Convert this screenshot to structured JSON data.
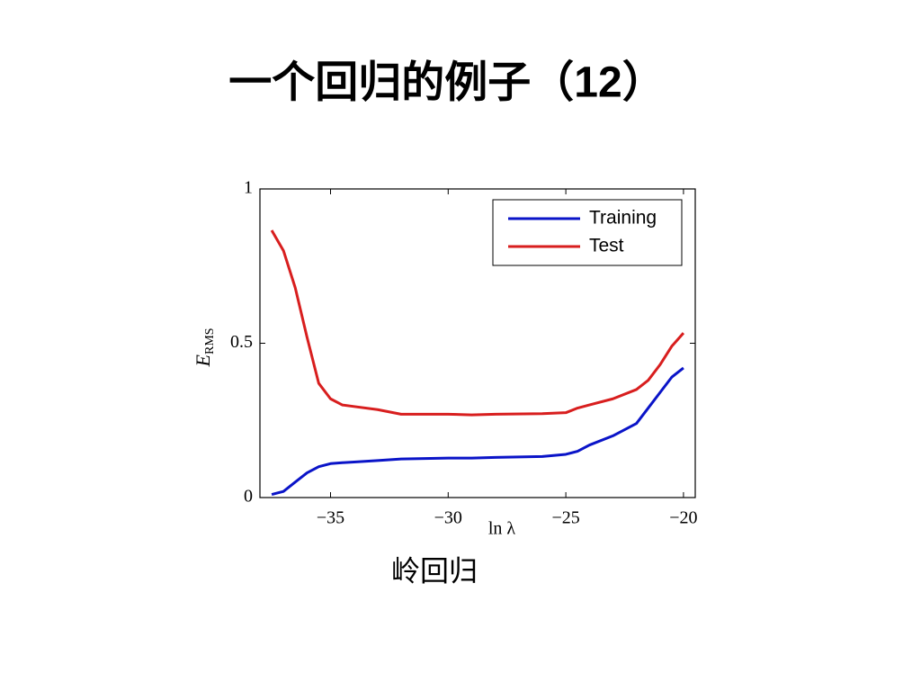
{
  "slide": {
    "title": "一个回归的例子（12）",
    "caption": "岭回归"
  },
  "chart_data": {
    "type": "line",
    "xlabel": "ln λ",
    "ylabel": "E",
    "ylabel_sub": "RMS",
    "x": [
      -37.5,
      -37,
      -36.5,
      -36,
      -35.5,
      -35,
      -34.5,
      -34,
      -33,
      -32,
      -30,
      -29,
      -28,
      -26,
      -25,
      -24.5,
      -24,
      -23,
      -22,
      -21.5,
      -21,
      -20.5,
      -20
    ],
    "series": [
      {
        "name": "Training",
        "color": "#0a14c8",
        "values": [
          0.01,
          0.02,
          0.05,
          0.08,
          0.1,
          0.11,
          0.113,
          0.115,
          0.12,
          0.125,
          0.128,
          0.128,
          0.13,
          0.133,
          0.14,
          0.15,
          0.17,
          0.2,
          0.24,
          0.29,
          0.34,
          0.39,
          0.42
        ]
      },
      {
        "name": "Test",
        "color": "#d81e1e",
        "values": [
          0.866,
          0.8,
          0.68,
          0.52,
          0.37,
          0.32,
          0.3,
          0.295,
          0.285,
          0.27,
          0.27,
          0.268,
          0.27,
          0.272,
          0.275,
          0.29,
          0.3,
          0.32,
          0.35,
          0.38,
          0.43,
          0.49,
          0.533
        ]
      }
    ],
    "xlim": [
      -38,
      -19.5
    ],
    "ylim": [
      0,
      1
    ],
    "xticks": [
      {
        "value": -35,
        "label": "−35"
      },
      {
        "value": -30,
        "label": "−30"
      },
      {
        "value": -25,
        "label": "−25"
      },
      {
        "value": -20,
        "label": "−20"
      }
    ],
    "yticks": [
      0,
      0.5,
      1
    ],
    "legend": "upper right"
  }
}
